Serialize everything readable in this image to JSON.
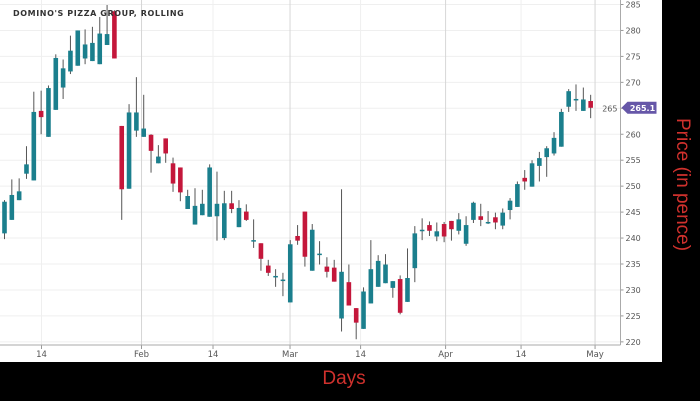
{
  "chart_data": {
    "type": "candlestick",
    "title": "DOMINO'S PIZZA GROUP, ROLLING",
    "xlabel": "Days",
    "ylabel": "Price (in pence)",
    "ylim": [
      220,
      285
    ],
    "y_ticks": [
      220,
      225,
      230,
      235,
      240,
      245,
      250,
      255,
      260,
      265,
      270,
      275,
      280,
      285
    ],
    "x_ticks": [
      {
        "label": "14",
        "index": 5.05,
        "major": false
      },
      {
        "label": "Feb",
        "index": 18.7,
        "major": true
      },
      {
        "label": "14",
        "index": 28.46,
        "major": false
      },
      {
        "label": "Mar",
        "index": 38.97,
        "major": true
      },
      {
        "label": "14",
        "index": 48.6,
        "major": false
      },
      {
        "label": "Apr",
        "index": 60.2,
        "major": true
      },
      {
        "label": "14",
        "index": 70.5,
        "major": false
      },
      {
        "label": "May",
        "index": 80.6,
        "major": true
      }
    ],
    "last_price_label": "265.1",
    "grid": true,
    "colors": {
      "up": "#1b7f8d",
      "down": "#c4173b",
      "last_price_badge": "#6657a8",
      "axis_title": "#d0312d"
    },
    "ohlc_fields": [
      "open",
      "high",
      "low",
      "close"
    ],
    "candles": [
      [
        240.9,
        247.3,
        239.8,
        247.0
      ],
      [
        243.5,
        251.3,
        243.5,
        248.3
      ],
      [
        247.3,
        251.5,
        247.3,
        249.0
      ],
      [
        252.4,
        257.7,
        251.4,
        254.2
      ],
      [
        251.1,
        268.2,
        251.1,
        264.3
      ],
      [
        264.5,
        268.4,
        260.0,
        263.3
      ],
      [
        259.5,
        269.4,
        259.5,
        268.9
      ],
      [
        264.7,
        275.4,
        264.7,
        274.7
      ],
      [
        269.0,
        274.4,
        266.8,
        272.7
      ],
      [
        272.1,
        279.0,
        271.6,
        276.1
      ],
      [
        273.2,
        280.0,
        273.2,
        280.0
      ],
      [
        274.6,
        280.2,
        273.5,
        277.3
      ],
      [
        274.1,
        280.7,
        274.1,
        277.6
      ],
      [
        273.5,
        282.6,
        273.5,
        279.4
      ],
      [
        277.2,
        284.9,
        277.2,
        279.3
      ],
      [
        283.7,
        283.9,
        274.6,
        274.6
      ],
      [
        261.6,
        261.6,
        243.5,
        249.4
      ],
      [
        249.5,
        265.8,
        249.5,
        264.2
      ],
      [
        260.7,
        271.0,
        259.5,
        264.2
      ],
      [
        259.5,
        267.6,
        259.5,
        261.1
      ],
      [
        259.9,
        260.0,
        252.6,
        256.8
      ],
      [
        254.4,
        257.9,
        254.4,
        255.7
      ],
      [
        259.2,
        259.2,
        254.5,
        256.3
      ],
      [
        254.4,
        255.5,
        248.9,
        250.5
      ],
      [
        253.6,
        253.6,
        247.1,
        248.8
      ],
      [
        245.6,
        249.3,
        245.6,
        248.1
      ],
      [
        242.6,
        249.6,
        242.6,
        246.2
      ],
      [
        244.4,
        249.3,
        244.4,
        246.6
      ],
      [
        244.1,
        254.2,
        244.1,
        253.6
      ],
      [
        244.2,
        252.8,
        239.5,
        246.6
      ],
      [
        240.0,
        249.1,
        239.6,
        246.7
      ],
      [
        246.7,
        249.1,
        244.8,
        245.6
      ],
      [
        242.1,
        247.3,
        242.1,
        245.8
      ],
      [
        245.1,
        246.5,
        243.3,
        243.5
      ],
      [
        239.4,
        243.6,
        238.1,
        239.6
      ],
      [
        239.0,
        239.0,
        233.7,
        236.0
      ],
      [
        234.7,
        235.8,
        232.7,
        233.3
      ],
      [
        232.5,
        234.0,
        230.6,
        232.7
      ],
      [
        231.8,
        233.3,
        228.8,
        232.0
      ],
      [
        227.6,
        239.6,
        227.6,
        238.8
      ],
      [
        240.4,
        242.5,
        238.7,
        239.5
      ],
      [
        245.1,
        245.1,
        234.5,
        236.4
      ],
      [
        233.7,
        242.7,
        233.7,
        241.6
      ],
      [
        236.8,
        239.4,
        234.9,
        237.0
      ],
      [
        234.5,
        236.3,
        232.4,
        233.5
      ],
      [
        234.3,
        235.8,
        231.6,
        231.6
      ],
      [
        224.5,
        249.4,
        222.0,
        233.5
      ],
      [
        231.5,
        234.9,
        227.0,
        227.0
      ],
      [
        226.5,
        226.5,
        220.5,
        223.7
      ],
      [
        222.5,
        230.5,
        222.5,
        229.7
      ],
      [
        227.4,
        239.6,
        227.4,
        234.0
      ],
      [
        230.6,
        236.7,
        230.6,
        235.6
      ],
      [
        231.3,
        236.9,
        231.3,
        234.9
      ],
      [
        230.4,
        231.7,
        228.5,
        231.7
      ],
      [
        232.1,
        232.8,
        225.3,
        225.6
      ],
      [
        227.7,
        238.0,
        227.7,
        232.3
      ],
      [
        234.2,
        242.3,
        231.5,
        240.9
      ],
      [
        241.4,
        243.8,
        239.6,
        241.6
      ],
      [
        242.5,
        243.2,
        240.4,
        241.4
      ],
      [
        240.3,
        243.0,
        239.4,
        241.3
      ],
      [
        242.7,
        243.1,
        239.2,
        240.3
      ],
      [
        243.3,
        243.3,
        239.5,
        241.7
      ],
      [
        241.4,
        244.8,
        240.7,
        243.6
      ],
      [
        238.9,
        244.2,
        238.5,
        242.5
      ],
      [
        243.5,
        247.0,
        242.9,
        246.8
      ],
      [
        244.2,
        246.6,
        242.3,
        243.5
      ],
      [
        242.9,
        245.2,
        242.7,
        243.1
      ],
      [
        244.0,
        244.9,
        241.7,
        243.0
      ],
      [
        242.4,
        245.7,
        241.7,
        244.9
      ],
      [
        245.4,
        247.7,
        243.6,
        247.2
      ],
      [
        246.0,
        250.9,
        246.0,
        250.4
      ],
      [
        251.6,
        253.1,
        249.3,
        250.9
      ],
      [
        249.9,
        255.0,
        249.9,
        254.4
      ],
      [
        253.9,
        256.6,
        250.9,
        255.4
      ],
      [
        255.6,
        257.7,
        251.8,
        257.3
      ],
      [
        256.3,
        260.4,
        255.9,
        259.3
      ],
      [
        257.6,
        264.9,
        257.6,
        264.3
      ],
      [
        265.3,
        268.7,
        264.3,
        268.3
      ],
      [
        266.6,
        269.6,
        264.5,
        266.8
      ],
      [
        264.5,
        269.0,
        264.5,
        266.7
      ],
      [
        266.4,
        267.6,
        263.1,
        265.1
      ]
    ]
  }
}
